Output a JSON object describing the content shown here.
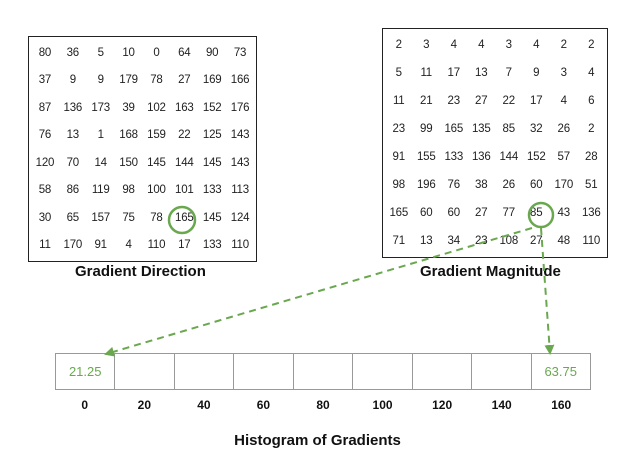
{
  "gradient_direction": {
    "caption": "Gradient Direction",
    "values": [
      [
        "80",
        "36",
        "5",
        "10",
        "0",
        "64",
        "90",
        "73"
      ],
      [
        "37",
        "9",
        "9",
        "179",
        "78",
        "27",
        "169",
        "166"
      ],
      [
        "87",
        "136",
        "173",
        "39",
        "102",
        "163",
        "152",
        "176"
      ],
      [
        "76",
        "13",
        "1",
        "168",
        "159",
        "22",
        "125",
        "143"
      ],
      [
        "120",
        "70",
        "14",
        "150",
        "145",
        "144",
        "145",
        "143"
      ],
      [
        "58",
        "86",
        "119",
        "98",
        "100",
        "101",
        "133",
        "113"
      ],
      [
        "30",
        "65",
        "157",
        "75",
        "78",
        "165",
        "145",
        "124"
      ],
      [
        "11",
        "170",
        "91",
        "4",
        "110",
        "17",
        "133",
        "110"
      ]
    ],
    "highlight": {
      "row": 6,
      "col": 5
    }
  },
  "gradient_magnitude": {
    "caption": "Gradient Magnitude",
    "values": [
      [
        "2",
        "3",
        "4",
        "4",
        "3",
        "4",
        "2",
        "2"
      ],
      [
        "5",
        "11",
        "17",
        "13",
        "7",
        "9",
        "3",
        "4"
      ],
      [
        "11",
        "21",
        "23",
        "27",
        "22",
        "17",
        "4",
        "6"
      ],
      [
        "23",
        "99",
        "165",
        "135",
        "85",
        "32",
        "26",
        "2"
      ],
      [
        "91",
        "155",
        "133",
        "136",
        "144",
        "152",
        "57",
        "28"
      ],
      [
        "98",
        "196",
        "76",
        "38",
        "26",
        "60",
        "170",
        "51"
      ],
      [
        "165",
        "60",
        "60",
        "27",
        "77",
        "85",
        "43",
        "136"
      ],
      [
        "71",
        "13",
        "34",
        "23",
        "108",
        "27",
        "48",
        "110"
      ]
    ],
    "highlight": {
      "row": 6,
      "col": 5
    }
  },
  "histogram": {
    "title": "Histogram of Gradients",
    "bins": [
      "21.25",
      "",
      "",
      "",
      "",
      "",
      "",
      "",
      "63.75"
    ],
    "tick_labels": [
      "0",
      "20",
      "40",
      "60",
      "80",
      "100",
      "120",
      "140",
      "160"
    ]
  },
  "colors": {
    "highlight": "#6aa84f",
    "text": "#222222",
    "border": "#999999"
  }
}
